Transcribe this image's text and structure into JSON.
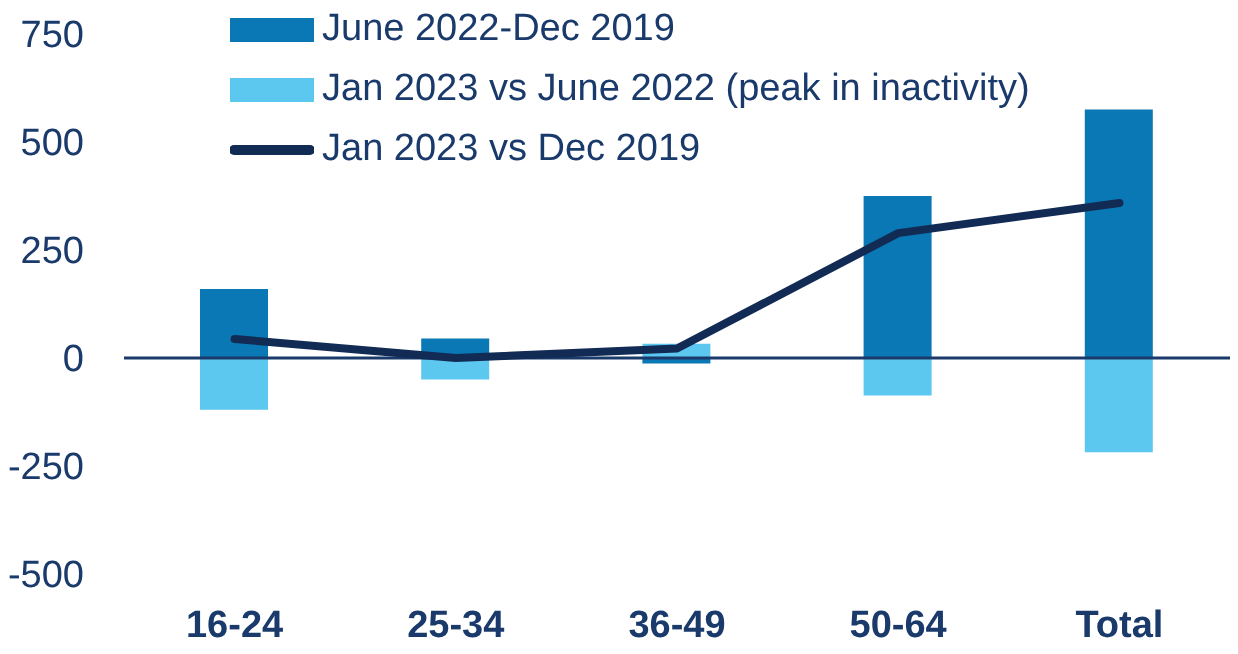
{
  "chart_data": {
    "type": "bar",
    "stacked": true,
    "categories": [
      "16-24",
      "25-34",
      "36-49",
      "50-64",
      "Total"
    ],
    "series": [
      {
        "name": "June 2022-Dec 2019",
        "color": "#0a78b4",
        "values": [
          160,
          45,
          -13,
          375,
          575
        ]
      },
      {
        "name": "Jan 2023 vs June 2022 (peak in inactivity)",
        "color": "#5cc8f0",
        "values": [
          -120,
          -50,
          33,
          -87,
          -218
        ]
      },
      {
        "name": "Jan 2023 vs Dec 2019",
        "type": "line",
        "color": "#122b54",
        "values": [
          44,
          0,
          22,
          289,
          359
        ]
      }
    ],
    "ylim": [
      -500,
      750
    ],
    "yticks": [
      -500,
      -250,
      0,
      250,
      500,
      750
    ],
    "ref_lines": [
      {
        "axis": "y",
        "value": 0,
        "color": "#1a3a6b"
      }
    ],
    "grid": false,
    "legend": "top",
    "marker": "none",
    "line_style": "solid"
  }
}
